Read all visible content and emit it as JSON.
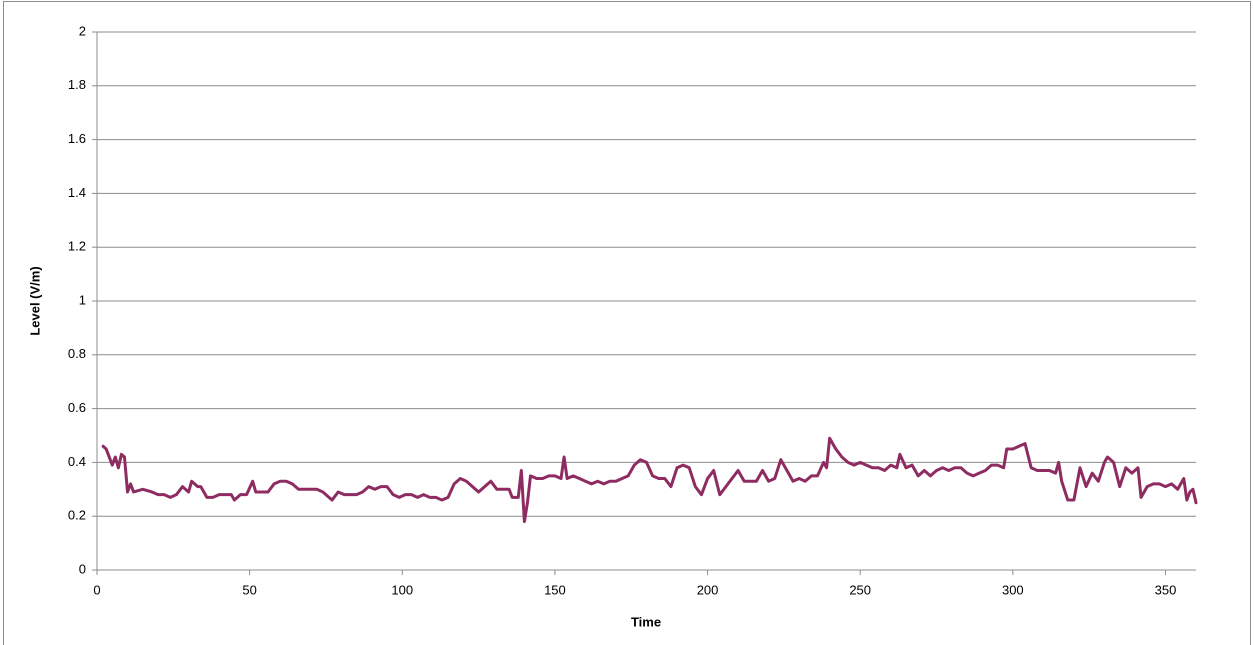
{
  "chart_data": {
    "type": "line",
    "x_label": "Time",
    "y_label": "Level (V/m)",
    "x": [
      2,
      3,
      5,
      6,
      7,
      8,
      9,
      10,
      11,
      12,
      15,
      18,
      20,
      22,
      24,
      26,
      28,
      30,
      31,
      33,
      34,
      36,
      38,
      40,
      42,
      44,
      45,
      47,
      49,
      51,
      52,
      54,
      56,
      58,
      60,
      62,
      64,
      66,
      68,
      70,
      72,
      74,
      76,
      77,
      79,
      81,
      83,
      85,
      87,
      89,
      91,
      93,
      95,
      97,
      99,
      101,
      103,
      105,
      107,
      109,
      111,
      113,
      115,
      117,
      119,
      121,
      123,
      125,
      127,
      129,
      131,
      133,
      135,
      136,
      138,
      139,
      140,
      141,
      142,
      144,
      146,
      148,
      150,
      152,
      153,
      154,
      156,
      158,
      160,
      162,
      164,
      166,
      168,
      170,
      172,
      174,
      176,
      178,
      180,
      182,
      184,
      186,
      188,
      190,
      192,
      194,
      196,
      198,
      200,
      202,
      204,
      206,
      208,
      210,
      212,
      214,
      216,
      218,
      220,
      222,
      224,
      226,
      228,
      230,
      232,
      234,
      236,
      238,
      239,
      240,
      242,
      244,
      246,
      248,
      250,
      252,
      254,
      256,
      258,
      260,
      262,
      263,
      265,
      267,
      269,
      271,
      273,
      275,
      277,
      279,
      281,
      283,
      285,
      287,
      289,
      291,
      293,
      295,
      297,
      298,
      300,
      302,
      304,
      306,
      308,
      310,
      312,
      314,
      315,
      316,
      318,
      320,
      322,
      324,
      326,
      328,
      330,
      331,
      333,
      335,
      337,
      339,
      341,
      342,
      344,
      346,
      348,
      350,
      352,
      354,
      356,
      357,
      358,
      359,
      360
    ],
    "series": [
      {
        "color": "#8e2c62",
        "values": [
          0.46,
          0.45,
          0.39,
          0.42,
          0.38,
          0.43,
          0.42,
          0.29,
          0.32,
          0.29,
          0.3,
          0.29,
          0.28,
          0.28,
          0.27,
          0.28,
          0.31,
          0.29,
          0.33,
          0.31,
          0.31,
          0.27,
          0.27,
          0.28,
          0.28,
          0.28,
          0.26,
          0.28,
          0.28,
          0.33,
          0.29,
          0.29,
          0.29,
          0.32,
          0.33,
          0.33,
          0.32,
          0.3,
          0.3,
          0.3,
          0.3,
          0.29,
          0.27,
          0.26,
          0.29,
          0.28,
          0.28,
          0.28,
          0.29,
          0.31,
          0.3,
          0.31,
          0.31,
          0.28,
          0.27,
          0.28,
          0.28,
          0.27,
          0.28,
          0.27,
          0.27,
          0.26,
          0.27,
          0.32,
          0.34,
          0.33,
          0.31,
          0.29,
          0.31,
          0.33,
          0.3,
          0.3,
          0.3,
          0.27,
          0.27,
          0.37,
          0.18,
          0.25,
          0.35,
          0.34,
          0.34,
          0.35,
          0.35,
          0.34,
          0.42,
          0.34,
          0.35,
          0.34,
          0.33,
          0.32,
          0.33,
          0.32,
          0.33,
          0.33,
          0.34,
          0.35,
          0.39,
          0.41,
          0.4,
          0.35,
          0.34,
          0.34,
          0.31,
          0.38,
          0.39,
          0.38,
          0.31,
          0.28,
          0.34,
          0.37,
          0.28,
          0.31,
          0.34,
          0.37,
          0.33,
          0.33,
          0.33,
          0.37,
          0.33,
          0.34,
          0.41,
          0.37,
          0.33,
          0.34,
          0.33,
          0.35,
          0.35,
          0.4,
          0.38,
          0.49,
          0.45,
          0.42,
          0.4,
          0.39,
          0.4,
          0.39,
          0.38,
          0.38,
          0.37,
          0.39,
          0.38,
          0.43,
          0.38,
          0.39,
          0.35,
          0.37,
          0.35,
          0.37,
          0.38,
          0.37,
          0.38,
          0.38,
          0.36,
          0.35,
          0.36,
          0.37,
          0.39,
          0.39,
          0.38,
          0.45,
          0.45,
          0.46,
          0.47,
          0.38,
          0.37,
          0.37,
          0.37,
          0.36,
          0.4,
          0.33,
          0.26,
          0.26,
          0.38,
          0.31,
          0.36,
          0.33,
          0.4,
          0.42,
          0.4,
          0.31,
          0.38,
          0.36,
          0.38,
          0.27,
          0.31,
          0.32,
          0.32,
          0.31,
          0.32,
          0.3,
          0.34,
          0.26,
          0.29,
          0.3,
          0.25
        ]
      }
    ],
    "xlim": [
      0,
      360
    ],
    "xticks": [
      0,
      50,
      100,
      150,
      200,
      250,
      300,
      350
    ],
    "ylim": [
      0,
      2
    ],
    "yticks": [
      0,
      0.2,
      0.4,
      0.6,
      0.8,
      1,
      1.2,
      1.4,
      1.6,
      1.8,
      2
    ],
    "grid": true
  }
}
